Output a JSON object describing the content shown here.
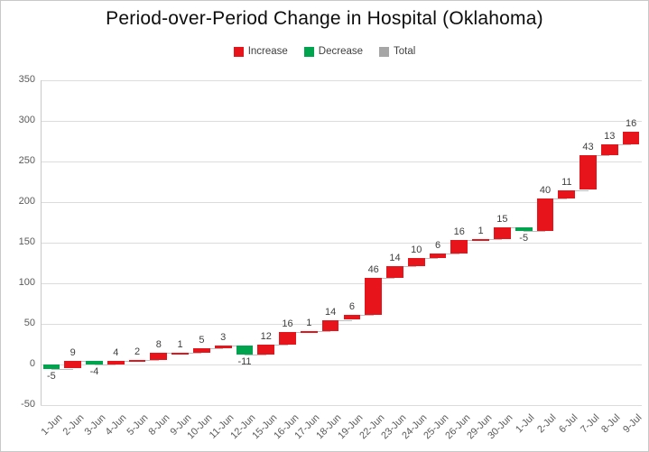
{
  "page": {
    "title": "Period-over-Period Change in Hospital (Oklahoma)"
  },
  "legend": {
    "items": [
      {
        "label": "Increase",
        "color": "#e8141c"
      },
      {
        "label": "Decrease",
        "color": "#00a44f"
      },
      {
        "label": "Total",
        "color": "#a6a6a6"
      }
    ]
  },
  "chart_data": {
    "type": "bar",
    "subtype": "waterfall",
    "title": "Period-over-Period Change in Hospital (Oklahoma)",
    "categories": [
      "1-Jun",
      "2-Jun",
      "3-Jun",
      "4-Jun",
      "5-Jun",
      "8-Jun",
      "9-Jun",
      "10-Jun",
      "11-Jun",
      "12-Jun",
      "15-Jun",
      "16-Jun",
      "17-Jun",
      "18-Jun",
      "19-Jun",
      "22-Jun",
      "23-Jun",
      "24-Jun",
      "25-Jun",
      "26-Jun",
      "29-Jun",
      "30-Jun",
      "1-Jul",
      "2-Jul",
      "6-Jul",
      "7-Jul",
      "8-Jul",
      "9-Jul"
    ],
    "values": [
      -5,
      9,
      -4,
      4,
      2,
      8,
      1,
      5,
      3,
      -11,
      12,
      16,
      1,
      14,
      6,
      46,
      14,
      10,
      6,
      16,
      1,
      15,
      -5,
      40,
      11,
      43,
      13,
      16
    ],
    "start_level": 0,
    "final_cumulative": 287,
    "xlabel": "",
    "ylabel": "",
    "ylim": [
      -50,
      350
    ],
    "yticks": [
      -50,
      0,
      50,
      100,
      150,
      200,
      250,
      300,
      350
    ],
    "grid": true,
    "legend_entries": [
      "Increase",
      "Decrease",
      "Total"
    ],
    "legend_position": "top",
    "xlabel_rotation_deg": -45,
    "colors": {
      "increase": "#e8141c",
      "decrease": "#00a44f",
      "total": "#a6a6a6",
      "gridline": "#dcdcdc",
      "axis_line": "#c9c9c9",
      "connector": "#bfbfbf",
      "axis_text": "#595959",
      "bar_label_text": "#3f3f3f"
    }
  }
}
